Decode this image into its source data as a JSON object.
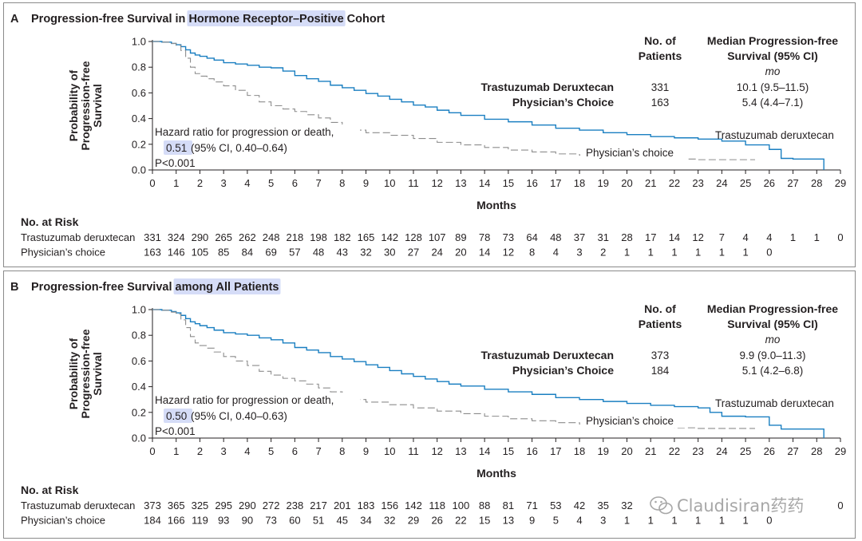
{
  "chart_data": [
    {
      "type": "line",
      "letter": "A",
      "title_plain": "Progression-free Survival in ",
      "title_highlight": "Hormone Receptor–Positive",
      "title_rest": " Cohort",
      "ylabel": [
        "Probability of",
        "Progression-free",
        "Survival"
      ],
      "xlabel": "Months",
      "ylim": [
        0,
        1.0
      ],
      "xlim": [
        0,
        29
      ],
      "y_ticks": [
        "0.0",
        "0.2",
        "0.4",
        "0.6",
        "0.8",
        "1.0"
      ],
      "x_ticks": [
        "0",
        "1",
        "2",
        "3",
        "4",
        "5",
        "6",
        "7",
        "8",
        "9",
        "10",
        "11",
        "12",
        "13",
        "14",
        "15",
        "16",
        "17",
        "18",
        "19",
        "20",
        "21",
        "22",
        "23",
        "24",
        "25",
        "26",
        "27",
        "28",
        "29"
      ],
      "legend": {
        "col1_head": [
          "No. of",
          "Patients"
        ],
        "col2_head": [
          "Median Progression-free",
          "Survival (95% CI)"
        ],
        "unit": "mo",
        "rows": [
          {
            "name": "Trastuzumab Deruxtecan",
            "n": "331",
            "median": "10.1 (9.5–11.5)"
          },
          {
            "name": "Physician’s Choice",
            "n": "163",
            "median": "5.4 (4.4–7.1)"
          }
        ]
      },
      "hazard": {
        "line1": "Hazard ratio for progression or death,",
        "hr_value": "0.51",
        "hr_ci": " (95% CI, 0.40–0.64)",
        "p_value": "P<0.001"
      },
      "series": [
        {
          "name": "Trastuzumab deruxtecan",
          "color": "#1a7fc1",
          "style": "solid",
          "x": [
            0,
            0.4,
            0.8,
            1.0,
            1.2,
            1.4,
            1.6,
            1.8,
            2.0,
            2.3,
            2.6,
            3.0,
            3.5,
            4.0,
            4.5,
            5.0,
            5.5,
            6.0,
            6.5,
            7.0,
            7.5,
            8.0,
            8.5,
            9.0,
            9.5,
            10.0,
            10.5,
            11.0,
            11.5,
            12.0,
            12.5,
            13.0,
            14.0,
            15.0,
            16.0,
            17.0,
            18.0,
            19.0,
            20.0,
            21.0,
            22.0,
            23.0,
            24.0,
            25.0,
            26.0,
            26.5,
            27.0,
            28.0,
            28.3
          ],
          "y": [
            1.0,
            0.995,
            0.985,
            0.975,
            0.96,
            0.935,
            0.91,
            0.895,
            0.885,
            0.87,
            0.855,
            0.835,
            0.825,
            0.815,
            0.8,
            0.795,
            0.77,
            0.735,
            0.71,
            0.69,
            0.66,
            0.64,
            0.62,
            0.595,
            0.575,
            0.55,
            0.53,
            0.505,
            0.49,
            0.465,
            0.445,
            0.425,
            0.395,
            0.375,
            0.35,
            0.325,
            0.31,
            0.29,
            0.275,
            0.26,
            0.25,
            0.24,
            0.225,
            0.195,
            0.16,
            0.09,
            0.085,
            0.085,
            0.0
          ]
        },
        {
          "name": "Physician’s choice",
          "color": "#8c8c8c",
          "style": "dashed",
          "x": [
            0,
            0.4,
            0.8,
            1.0,
            1.2,
            1.4,
            1.6,
            1.8,
            2.0,
            2.3,
            2.6,
            3.0,
            3.5,
            4.0,
            4.5,
            5.0,
            5.5,
            6.0,
            6.5,
            7.0,
            7.5,
            8.0,
            8.5,
            9.0,
            10.0,
            11.0,
            12.0,
            13.0,
            14.0,
            15.0,
            16.0,
            17.0,
            18.0,
            19.0,
            20.0,
            21.0,
            22.0,
            23.0,
            24.0,
            25.0,
            25.4
          ],
          "y": [
            1.0,
            0.995,
            0.985,
            0.97,
            0.93,
            0.87,
            0.8,
            0.75,
            0.73,
            0.71,
            0.685,
            0.655,
            0.62,
            0.58,
            0.53,
            0.5,
            0.475,
            0.455,
            0.43,
            0.405,
            0.37,
            0.34,
            0.31,
            0.29,
            0.27,
            0.245,
            0.215,
            0.195,
            0.175,
            0.155,
            0.14,
            0.125,
            0.115,
            0.105,
            0.095,
            0.09,
            0.085,
            0.08,
            0.08,
            0.08,
            0.08
          ]
        }
      ],
      "curve_labels": [
        "Trastuzumab deruxtecan",
        "Physician’s choice"
      ],
      "risk": {
        "title": "No. at Risk",
        "rows": [
          {
            "label": "Trastuzumab deruxtecan",
            "values": [
              "331",
              "324",
              "290",
              "265",
              "262",
              "248",
              "218",
              "198",
              "182",
              "165",
              "142",
              "128",
              "107",
              "89",
              "78",
              "73",
              "64",
              "48",
              "37",
              "31",
              "28",
              "17",
              "14",
              "12",
              "7",
              "4",
              "4",
              "1",
              "1",
              "0"
            ]
          },
          {
            "label": "Physician’s choice",
            "values": [
              "163",
              "146",
              "105",
              "85",
              "84",
              "69",
              "57",
              "48",
              "43",
              "32",
              "30",
              "27",
              "24",
              "20",
              "14",
              "12",
              "8",
              "4",
              "3",
              "2",
              "1",
              "1",
              "1",
              "1",
              "1",
              "1",
              "0"
            ]
          }
        ]
      }
    },
    {
      "type": "line",
      "letter": "B",
      "title_plain": "Progression-free Survival ",
      "title_highlight": "among All Patients",
      "title_rest": "",
      "ylabel": [
        "Probability of",
        "Progression-free",
        "Survival"
      ],
      "xlabel": "Months",
      "ylim": [
        0,
        1.0
      ],
      "xlim": [
        0,
        29
      ],
      "y_ticks": [
        "0.0",
        "0.2",
        "0.4",
        "0.6",
        "0.8",
        "1.0"
      ],
      "x_ticks": [
        "0",
        "1",
        "2",
        "3",
        "4",
        "5",
        "6",
        "7",
        "8",
        "9",
        "10",
        "11",
        "12",
        "13",
        "14",
        "15",
        "16",
        "17",
        "18",
        "19",
        "20",
        "21",
        "22",
        "23",
        "24",
        "25",
        "26",
        "27",
        "28",
        "29"
      ],
      "legend": {
        "col1_head": [
          "No. of",
          "Patients"
        ],
        "col2_head": [
          "Median Progression-free",
          "Survival (95% CI)"
        ],
        "unit": "mo",
        "rows": [
          {
            "name": "Trastuzumab Deruxtecan",
            "n": "373",
            "median": "9.9 (9.0–11.3)"
          },
          {
            "name": "Physician’s Choice",
            "n": "184",
            "median": "5.1 (4.2–6.8)"
          }
        ]
      },
      "hazard": {
        "line1": "Hazard ratio for progression or death,",
        "hr_value": "0.50",
        "hr_ci": " (95% CI, 0.40–0.63)",
        "p_value": "P<0.001"
      },
      "series": [
        {
          "name": "Trastuzumab deruxtecan",
          "color": "#1a7fc1",
          "style": "solid",
          "x": [
            0,
            0.4,
            0.8,
            1.0,
            1.2,
            1.4,
            1.6,
            1.8,
            2.0,
            2.3,
            2.6,
            3.0,
            3.5,
            4.0,
            4.5,
            5.0,
            5.5,
            6.0,
            6.5,
            7.0,
            7.5,
            8.0,
            8.5,
            9.0,
            9.5,
            10.0,
            10.5,
            11.0,
            11.5,
            12.0,
            12.5,
            13.0,
            14.0,
            15.0,
            16.0,
            17.0,
            18.0,
            19.0,
            20.0,
            21.0,
            22.0,
            23.0,
            23.5,
            24.0,
            25.0,
            26.0,
            26.5,
            27.0,
            28.0,
            28.3
          ],
          "y": [
            1.0,
            0.995,
            0.985,
            0.975,
            0.955,
            0.93,
            0.905,
            0.89,
            0.875,
            0.86,
            0.84,
            0.82,
            0.81,
            0.8,
            0.78,
            0.765,
            0.74,
            0.705,
            0.685,
            0.665,
            0.635,
            0.615,
            0.595,
            0.57,
            0.55,
            0.525,
            0.5,
            0.48,
            0.46,
            0.44,
            0.42,
            0.405,
            0.38,
            0.36,
            0.34,
            0.315,
            0.3,
            0.285,
            0.27,
            0.255,
            0.245,
            0.235,
            0.2,
            0.17,
            0.165,
            0.1,
            0.07,
            0.07,
            0.07,
            0.0
          ]
        },
        {
          "name": "Physician’s choice",
          "color": "#8c8c8c",
          "style": "dashed",
          "x": [
            0,
            0.4,
            0.8,
            1.0,
            1.2,
            1.4,
            1.6,
            1.8,
            2.0,
            2.3,
            2.6,
            3.0,
            3.5,
            4.0,
            4.5,
            5.0,
            5.5,
            6.0,
            6.5,
            7.0,
            7.5,
            8.0,
            8.5,
            9.0,
            10.0,
            11.0,
            12.0,
            13.0,
            14.0,
            15.0,
            16.0,
            17.0,
            18.0,
            19.0,
            20.0,
            21.0,
            22.0,
            23.0,
            24.0,
            25.0,
            25.4
          ],
          "y": [
            1.0,
            0.995,
            0.98,
            0.965,
            0.92,
            0.86,
            0.79,
            0.74,
            0.72,
            0.7,
            0.67,
            0.635,
            0.6,
            0.565,
            0.52,
            0.49,
            0.465,
            0.445,
            0.42,
            0.39,
            0.36,
            0.33,
            0.3,
            0.28,
            0.26,
            0.235,
            0.21,
            0.19,
            0.17,
            0.15,
            0.135,
            0.12,
            0.11,
            0.1,
            0.09,
            0.085,
            0.08,
            0.075,
            0.075,
            0.075,
            0.075
          ]
        }
      ],
      "curve_labels": [
        "Trastuzumab deruxtecan",
        "Physician’s choice"
      ],
      "risk": {
        "title": "No. at Risk",
        "rows": [
          {
            "label": "Trastuzumab deruxtecan",
            "values": [
              "373",
              "365",
              "325",
              "295",
              "290",
              "272",
              "238",
              "217",
              "201",
              "183",
              "156",
              "142",
              "118",
              "100",
              "88",
              "81",
              "71",
              "53",
              "42",
              "35",
              "32",
              "",
              "",
              "",
              "",
              "",
              "",
              "",
              "",
              "0"
            ]
          },
          {
            "label": "Physician’s choice",
            "values": [
              "184",
              "166",
              "119",
              "93",
              "90",
              "73",
              "60",
              "51",
              "45",
              "34",
              "32",
              "29",
              "26",
              "22",
              "15",
              "13",
              "9",
              "5",
              "4",
              "3",
              "1",
              "1",
              "1",
              "1",
              "1",
              "1",
              "0"
            ]
          }
        ]
      }
    }
  ],
  "watermark": {
    "text": "Claudisiran药药",
    "icon": "wechat-icon"
  }
}
